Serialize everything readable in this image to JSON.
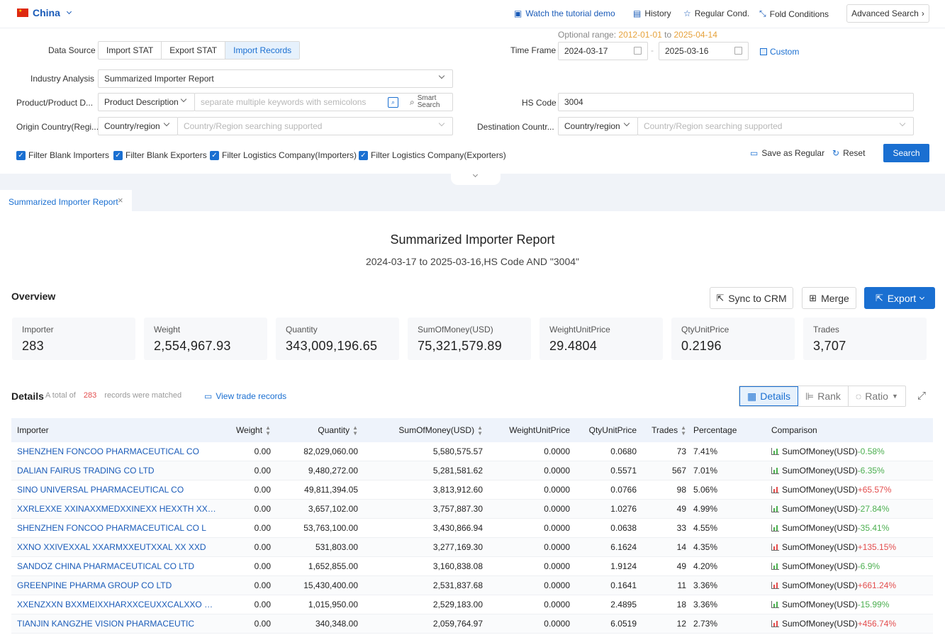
{
  "topbar": {
    "country": "China",
    "tutorial": "Watch the tutorial demo",
    "history": "History",
    "regular_cond": "Regular Cond.",
    "fold": "Fold Conditions",
    "advanced": "Advanced Search"
  },
  "form": {
    "data_source_label": "Data Source",
    "data_source_options": [
      "Import STAT",
      "Export STAT",
      "Import Records"
    ],
    "data_source_active": "Import Records",
    "optional_range_label": "Optional range:",
    "optional_range_from": "2012-01-01",
    "optional_range_to_word": "to",
    "optional_range_to": "2025-04-14",
    "time_frame_label": "Time Frame",
    "date_from": "2024-03-17",
    "date_sep": "-",
    "date_to": "2025-03-16",
    "custom": "Custom",
    "industry_label": "Industry Analysis",
    "industry_value": "Summarized Importer Report",
    "product_label": "Product/Product D...",
    "product_select": "Product Description",
    "product_placeholder": "separate multiple keywords with semicolons",
    "smart_search_1": "Smart",
    "smart_search_2": "Search",
    "hs_label": "HS Code",
    "hs_value": "3004",
    "origin_label": "Origin Country(Regi...",
    "origin_select": "Country/region",
    "origin_placeholder": "Country/Region searching supported",
    "dest_label": "Destination Countr...",
    "dest_select": "Country/region",
    "dest_placeholder": "Country/Region searching supported",
    "checks": [
      "Filter Blank Importers",
      "Filter Blank Exporters",
      "Filter Logistics Company(Importers)",
      "Filter Logistics Company(Exporters)"
    ],
    "save_regular": "Save as Regular",
    "reset": "Reset",
    "search": "Search"
  },
  "tab": {
    "label": "Summarized Importer Report",
    "close": "×"
  },
  "report": {
    "title": "Summarized Importer Report",
    "subtitle": "2024-03-17 to 2025-03-16,HS Code AND \"3004\""
  },
  "overview": {
    "title": "Overview",
    "sync": "Sync to CRM",
    "merge": "Merge",
    "export": "Export",
    "stats": [
      {
        "k": "Importer",
        "v": "283"
      },
      {
        "k": "Weight",
        "v": "2,554,967.93"
      },
      {
        "k": "Quantity",
        "v": "343,009,196.65"
      },
      {
        "k": "SumOfMoney(USD)",
        "v": "75,321,579.89"
      },
      {
        "k": "WeightUnitPrice",
        "v": "29.4804"
      },
      {
        "k": "QtyUnitPrice",
        "v": "0.2196"
      },
      {
        "k": "Trades",
        "v": "3,707"
      }
    ]
  },
  "details": {
    "title": "Details",
    "total_prefix": "A total of",
    "total_count": "283",
    "total_suffix": "records were matched",
    "view_records": "View trade records",
    "view_details": "Details",
    "view_rank": "Rank",
    "view_ratio": "Ratio",
    "columns": [
      "Importer",
      "Weight",
      "Quantity",
      "SumOfMoney(USD)",
      "WeightUnitPrice",
      "QtyUnitPrice",
      "Trades",
      "Percentage",
      "Comparison"
    ],
    "rows": [
      {
        "importer": "SHENZHEN FONCOO PHARMACEUTICAL CO",
        "weight": "0.00",
        "qty": "82,029,060.00",
        "sum": "5,580,575.57",
        "wup": "0.0000",
        "qup": "0.0680",
        "trades": "73",
        "pct": "7.41%",
        "cmp_label": "SumOfMoney(USD)",
        "cmp": "-0.58%",
        "dir": "down"
      },
      {
        "importer": "DALIAN FAIRUS TRADING CO LTD",
        "weight": "0.00",
        "qty": "9,480,272.00",
        "sum": "5,281,581.62",
        "wup": "0.0000",
        "qup": "0.5571",
        "trades": "567",
        "pct": "7.01%",
        "cmp_label": "SumOfMoney(USD)",
        "cmp": "-6.35%",
        "dir": "down"
      },
      {
        "importer": "SINO UNIVERSAL PHARMACEUTICAL CO",
        "weight": "0.00",
        "qty": "49,811,394.05",
        "sum": "3,813,912.60",
        "wup": "0.0000",
        "qup": "0.0766",
        "trades": "98",
        "pct": "5.06%",
        "cmp_label": "SumOfMoney(USD)",
        "cmp": "+65.57%",
        "dir": "up"
      },
      {
        "importer": "XXRLEXXE XXINAXXMEDXXINEXX HEXXTH XXRE X...",
        "weight": "0.00",
        "qty": "3,657,102.00",
        "sum": "3,757,887.30",
        "wup": "0.0000",
        "qup": "1.0276",
        "trades": "49",
        "pct": "4.99%",
        "cmp_label": "SumOfMoney(USD)",
        "cmp": "-27.84%",
        "dir": "down"
      },
      {
        "importer": "SHENZHEN FONCOO PHARMACEUTICAL CO L",
        "weight": "0.00",
        "qty": "53,763,100.00",
        "sum": "3,430,866.94",
        "wup": "0.0000",
        "qup": "0.0638",
        "trades": "33",
        "pct": "4.55%",
        "cmp_label": "SumOfMoney(USD)",
        "cmp": "-35.41%",
        "dir": "down"
      },
      {
        "importer": "XXNO XXIVEXXAL XXARMXXEUTXXAL XX XXD",
        "weight": "0.00",
        "qty": "531,803.00",
        "sum": "3,277,169.30",
        "wup": "0.0000",
        "qup": "6.1624",
        "trades": "14",
        "pct": "4.35%",
        "cmp_label": "SumOfMoney(USD)",
        "cmp": "+135.15%",
        "dir": "up"
      },
      {
        "importer": "SANDOZ CHINA PHARMACEUTICAL CO LTD",
        "weight": "0.00",
        "qty": "1,652,855.00",
        "sum": "3,160,838.08",
        "wup": "0.0000",
        "qup": "1.9124",
        "trades": "49",
        "pct": "4.20%",
        "cmp_label": "SumOfMoney(USD)",
        "cmp": "-6.9%",
        "dir": "down"
      },
      {
        "importer": "GREENPINE PHARMA GROUP CO LTD",
        "weight": "0.00",
        "qty": "15,430,400.00",
        "sum": "2,531,837.68",
        "wup": "0.0000",
        "qup": "0.1641",
        "trades": "11",
        "pct": "3.36%",
        "cmp_label": "SumOfMoney(USD)",
        "cmp": "+661.24%",
        "dir": "up"
      },
      {
        "importer": "XXENZXXN BXXMEIXXHARXXCEUXXCALXXO XXTD",
        "weight": "0.00",
        "qty": "1,015,950.00",
        "sum": "2,529,183.00",
        "wup": "0.0000",
        "qup": "2.4895",
        "trades": "18",
        "pct": "3.36%",
        "cmp_label": "SumOfMoney(USD)",
        "cmp": "-15.99%",
        "dir": "down"
      },
      {
        "importer": "TIANJIN KANGZHE VISION PHARMACEUTIC",
        "weight": "0.00",
        "qty": "340,348.00",
        "sum": "2,059,764.97",
        "wup": "0.0000",
        "qup": "6.0519",
        "trades": "12",
        "pct": "2.73%",
        "cmp_label": "SumOfMoney(USD)",
        "cmp": "+456.74%",
        "dir": "up"
      }
    ]
  }
}
